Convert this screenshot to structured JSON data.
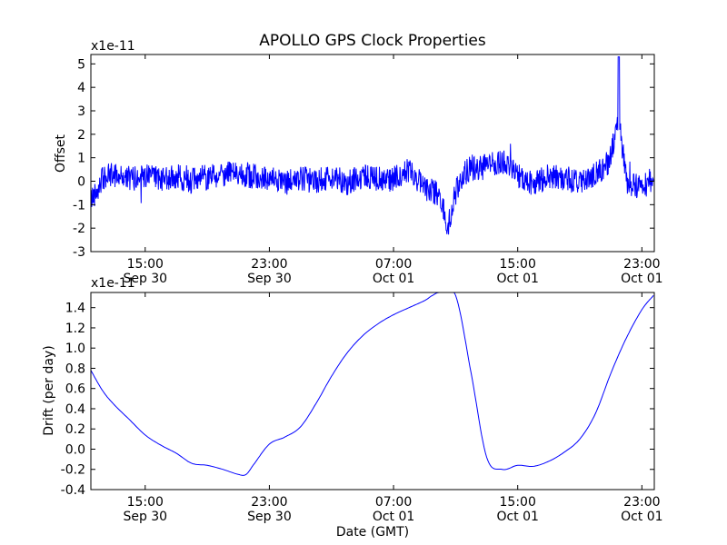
{
  "chart_data": [
    {
      "type": "line",
      "title": "APOLLO GPS Clock Properties",
      "ylabel": "Offset",
      "xlabel": "",
      "scale_note": "x1e-11",
      "ylim": [
        -3,
        5.4
      ],
      "yticks": [
        -3,
        -2,
        -1,
        0,
        1,
        2,
        3,
        4,
        5
      ],
      "ytick_labels": [
        "-3",
        "-2",
        "-1",
        "0",
        "1",
        "2",
        "3",
        "4",
        "5"
      ],
      "xlim_hours": [
        11.5,
        23.8
      ],
      "xticks": [
        {
          "time": "15:00",
          "date": "Sep 30"
        },
        {
          "time": "23:00",
          "date": "Sep 30"
        },
        {
          "time": "07:00",
          "date": "Oct 01"
        },
        {
          "time": "15:00",
          "date": "Oct 01"
        },
        {
          "time": "23:00",
          "date": "Oct 01"
        }
      ],
      "color": "#0000ff",
      "series": [
        {
          "x": [
            "2014-09-30 11:30",
            "2014-09-30 12:15",
            "2014-09-30 13:00",
            "2014-09-30 14:00",
            "2014-09-30 15:00",
            "2014-09-30 16:00",
            "2014-09-30 17:00",
            "2014-09-30 18:00",
            "2014-09-30 19:00",
            "2014-09-30 20:00",
            "2014-09-30 21:00",
            "2014-09-30 22:00",
            "2014-09-30 23:00",
            "2014-10-01 00:00",
            "2014-10-01 01:00",
            "2014-10-01 02:00",
            "2014-10-01 03:00",
            "2014-10-01 04:00",
            "2014-10-01 05:00",
            "2014-10-01 06:00",
            "2014-10-01 07:00",
            "2014-10-01 08:00",
            "2014-10-01 09:00",
            "2014-10-01 10:00",
            "2014-10-01 10:30",
            "2014-10-01 11:00",
            "2014-10-01 11:30",
            "2014-10-01 12:00",
            "2014-10-01 13:00",
            "2014-10-01 14:00",
            "2014-10-01 15:00",
            "2014-10-01 16:00",
            "2014-10-01 17:00",
            "2014-10-01 18:00",
            "2014-10-01 19:00",
            "2014-10-01 20:00",
            "2014-10-01 20:30",
            "2014-10-01 21:00",
            "2014-10-01 21:30",
            "2014-10-01 22:00",
            "2014-10-01 23:00",
            "2014-10-01 23:45"
          ],
          "y": [
            -0.8,
            0.1,
            0.3,
            0.1,
            0.2,
            0.1,
            0.2,
            0.0,
            0.2,
            0.3,
            0.4,
            0.2,
            0.1,
            -0.1,
            0.1,
            0.0,
            0.2,
            -0.1,
            0.2,
            0.1,
            0.1,
            0.5,
            -0.3,
            -0.6,
            -2.0,
            -0.5,
            0.3,
            0.6,
            0.6,
            0.9,
            0.2,
            -0.1,
            0.2,
            0.1,
            0.0,
            0.3,
            0.5,
            1.0,
            2.8,
            0.0,
            -0.3,
            0.2
          ]
        }
      ]
    },
    {
      "type": "line",
      "title": "",
      "ylabel": "Drift (per day)",
      "xlabel": "Date (GMT)",
      "scale_note": "x1e-11",
      "ylim": [
        -0.4,
        1.55
      ],
      "yticks": [
        -0.4,
        -0.2,
        0.0,
        0.2,
        0.4,
        0.6,
        0.8,
        1.0,
        1.2,
        1.4
      ],
      "ytick_labels": [
        "-0.4",
        "-0.2",
        "0.0",
        "0.2",
        "0.4",
        "0.6",
        "0.8",
        "1.0",
        "1.2",
        "1.4"
      ],
      "xlim_hours": [
        11.5,
        23.8
      ],
      "xticks": [
        {
          "time": "15:00",
          "date": "Sep 30"
        },
        {
          "time": "23:00",
          "date": "Sep 30"
        },
        {
          "time": "07:00",
          "date": "Oct 01"
        },
        {
          "time": "15:00",
          "date": "Oct 01"
        },
        {
          "time": "23:00",
          "date": "Oct 01"
        }
      ],
      "color": "#0000ff",
      "series": [
        {
          "x": [
            "2014-09-30 11:30",
            "2014-09-30 12:15",
            "2014-09-30 13:00",
            "2014-09-30 14:00",
            "2014-09-30 15:00",
            "2014-09-30 16:00",
            "2014-09-30 17:00",
            "2014-09-30 18:00",
            "2014-09-30 19:00",
            "2014-09-30 20:00",
            "2014-09-30 21:00",
            "2014-09-30 21:30",
            "2014-09-30 22:00",
            "2014-09-30 23:00",
            "2014-10-01 00:00",
            "2014-10-01 01:00",
            "2014-10-01 02:00",
            "2014-10-01 03:00",
            "2014-10-01 04:00",
            "2014-10-01 05:00",
            "2014-10-01 06:00",
            "2014-10-01 07:00",
            "2014-10-01 08:00",
            "2014-10-01 09:00",
            "2014-10-01 09:30",
            "2014-10-01 10:00",
            "2014-10-01 11:00",
            "2014-10-01 12:00",
            "2014-10-01 13:00",
            "2014-10-01 14:00",
            "2014-10-01 15:00",
            "2014-10-01 16:00",
            "2014-10-01 17:00",
            "2014-10-01 18:00",
            "2014-10-01 19:00",
            "2014-10-01 20:00",
            "2014-10-01 21:00",
            "2014-10-01 22:00",
            "2014-10-01 23:00",
            "2014-10-01 23:45"
          ],
          "y": [
            0.78,
            0.58,
            0.44,
            0.29,
            0.14,
            0.04,
            -0.04,
            -0.14,
            -0.16,
            -0.2,
            -0.25,
            -0.25,
            -0.15,
            0.05,
            0.12,
            0.22,
            0.45,
            0.72,
            0.95,
            1.12,
            1.24,
            1.33,
            1.4,
            1.47,
            1.52,
            1.55,
            1.52,
            0.75,
            -0.08,
            -0.2,
            -0.16,
            -0.17,
            -0.12,
            -0.03,
            0.1,
            0.35,
            0.75,
            1.1,
            1.38,
            1.52
          ]
        }
      ]
    }
  ]
}
